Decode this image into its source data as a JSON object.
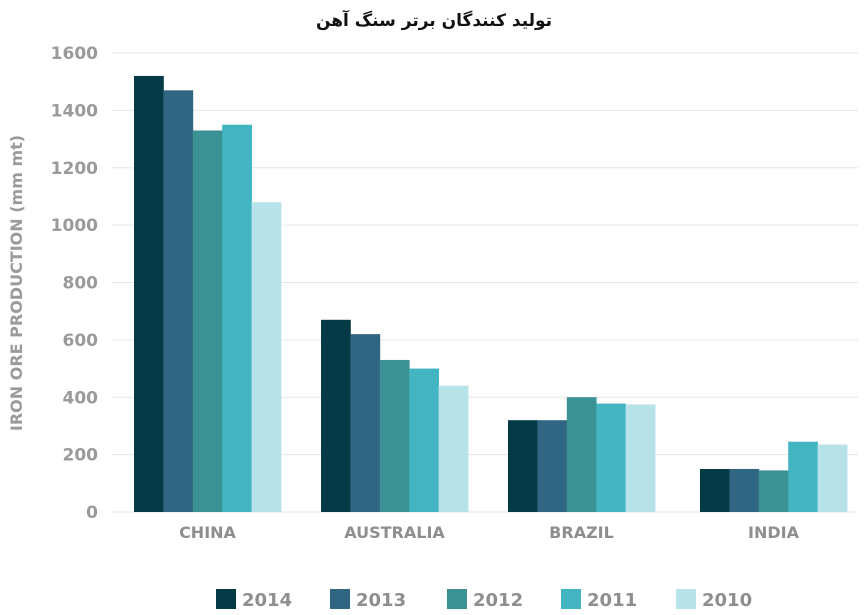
{
  "chart_data": {
    "type": "bar",
    "title": "تولید کنندگان برتر سنگ آهن",
    "xlabel": "",
    "ylabel": "IRON ORE PRODUCTION (mm mt)",
    "ylim": [
      0,
      1600
    ],
    "yticks": [
      "0",
      "200",
      "400",
      "600",
      "800",
      "1000",
      "1200",
      "1400",
      "1600"
    ],
    "categories": [
      "CHINA",
      "AUSTRALIA",
      "BRAZIL",
      "INDIA"
    ],
    "series": [
      {
        "name": "2014",
        "color": "#033a45",
        "values": [
          1520,
          670,
          320,
          150
        ]
      },
      {
        "name": "2013",
        "color": "#316683",
        "values": [
          1470,
          620,
          320,
          150
        ]
      },
      {
        "name": "2012",
        "color": "#3a9294",
        "values": [
          1330,
          530,
          400,
          145
        ]
      },
      {
        "name": "2011",
        "color": "#43b5c2",
        "values": [
          1350,
          500,
          378,
          245
        ]
      },
      {
        "name": "2010",
        "color": "#b7e2e8",
        "values": [
          1080,
          440,
          375,
          235
        ]
      }
    ],
    "grid": true,
    "legend_position": "bottom"
  }
}
